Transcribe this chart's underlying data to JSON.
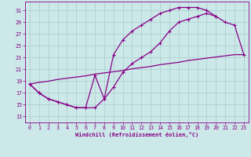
{
  "xlabel": "Windchill (Refroidissement éolien,°C)",
  "background_color": "#cce8e8",
  "line_color": "#880088",
  "grid_color": "#aacccc",
  "xlim": [
    -0.5,
    23.5
  ],
  "ylim": [
    12,
    32.5
  ],
  "yticks": [
    13,
    15,
    17,
    19,
    21,
    23,
    25,
    27,
    29,
    31
  ],
  "xticks": [
    0,
    1,
    2,
    3,
    4,
    5,
    6,
    7,
    8,
    9,
    10,
    11,
    12,
    13,
    14,
    15,
    16,
    17,
    18,
    19,
    20,
    21,
    22,
    23
  ],
  "curve1_x": [
    0,
    1,
    2,
    3,
    4,
    5,
    6,
    7,
    8,
    9,
    10,
    11,
    12,
    13,
    14,
    15,
    16,
    17,
    18,
    19,
    20
  ],
  "curve1_y": [
    18.5,
    17.0,
    16.0,
    15.5,
    15.0,
    14.5,
    14.5,
    20.0,
    16.0,
    23.5,
    26.0,
    27.5,
    28.5,
    29.5,
    30.5,
    31.0,
    31.5,
    31.5,
    31.5,
    31.0,
    30.0
  ],
  "curve2_x": [
    0,
    1,
    2,
    3,
    4,
    5,
    6,
    7,
    8,
    9,
    10,
    11,
    12,
    13,
    14,
    15,
    16,
    17,
    18,
    19,
    20,
    21,
    22,
    23
  ],
  "curve2_y": [
    18.5,
    17.0,
    16.0,
    15.5,
    15.0,
    14.5,
    14.5,
    14.5,
    16.0,
    18.0,
    20.5,
    22.0,
    23.0,
    24.0,
    25.5,
    27.5,
    29.0,
    29.5,
    30.0,
    30.5,
    30.0,
    29.0,
    28.5,
    23.5
  ],
  "curve3_x": [
    0,
    1,
    2,
    3,
    4,
    5,
    6,
    7,
    8,
    9,
    10,
    11,
    12,
    13,
    14,
    15,
    16,
    17,
    18,
    19,
    20,
    21,
    22,
    23
  ],
  "curve3_y": [
    18.5,
    18.8,
    19.0,
    19.3,
    19.5,
    19.7,
    19.9,
    20.2,
    20.4,
    20.6,
    20.8,
    21.1,
    21.3,
    21.5,
    21.8,
    22.0,
    22.2,
    22.5,
    22.7,
    22.9,
    23.1,
    23.3,
    23.5,
    23.5
  ],
  "markersize": 2.5,
  "linewidth": 0.9
}
